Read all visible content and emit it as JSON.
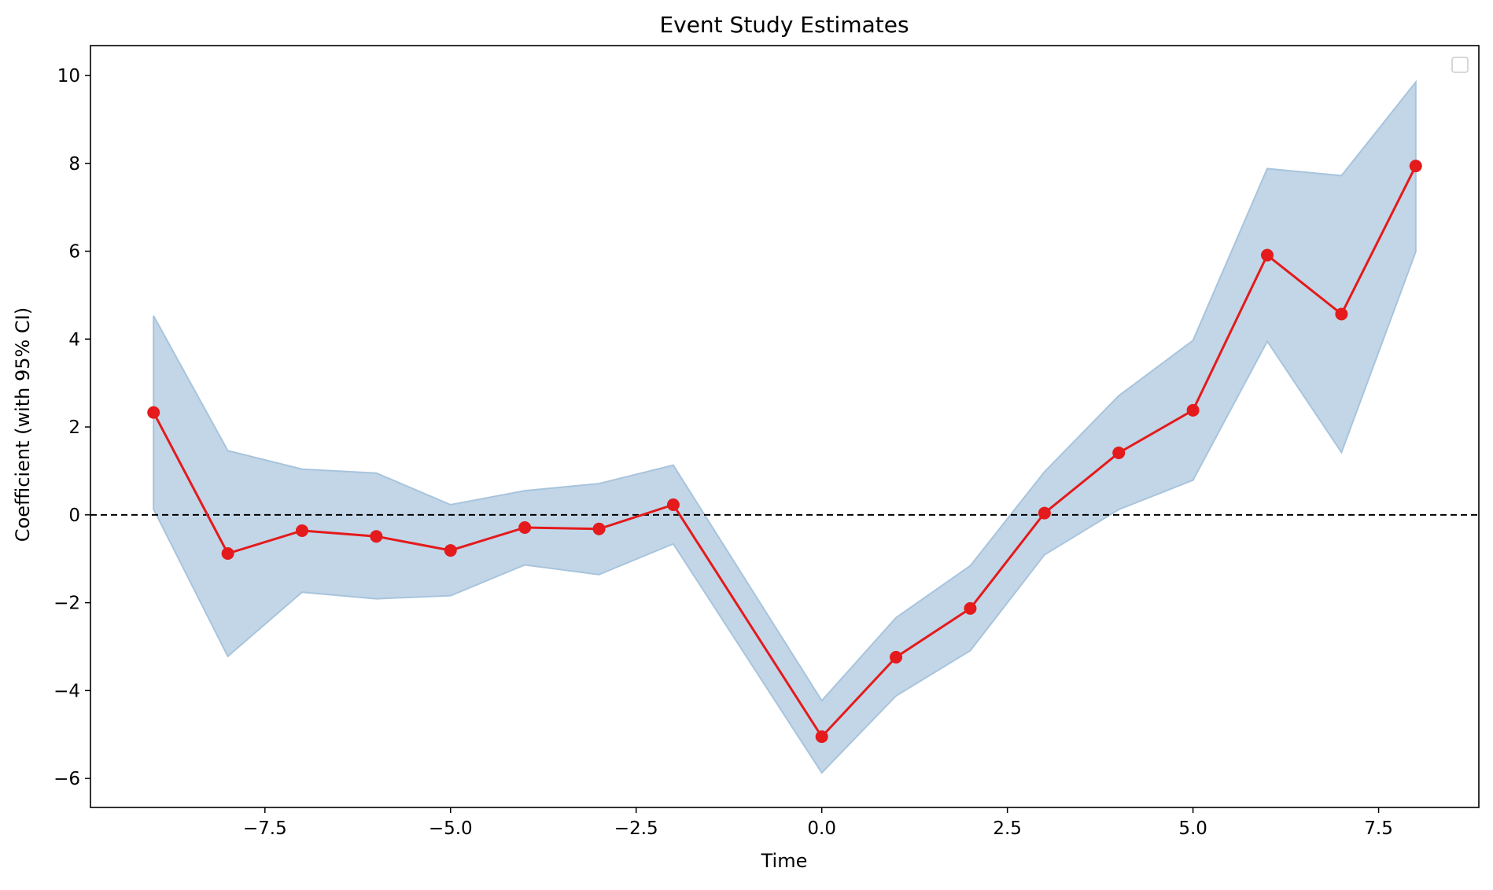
{
  "chart_data": {
    "type": "line",
    "title": "Event Study Estimates",
    "xlabel": "Time",
    "ylabel": "Coefficient (with 95% CI)",
    "xlim": [
      -9.85,
      8.85
    ],
    "ylim": [
      -6.66,
      10.68
    ],
    "x_ticks": [
      -7.5,
      -5.0,
      -2.5,
      0.0,
      2.5,
      5.0,
      7.5
    ],
    "x_tick_labels": [
      "−7.5",
      "−5.0",
      "−2.5",
      "0.0",
      "2.5",
      "5.0",
      "7.5"
    ],
    "y_ticks": [
      -6,
      -4,
      -2,
      0,
      2,
      4,
      6,
      8,
      10
    ],
    "y_tick_labels": [
      "−6",
      "−4",
      "−2",
      "0",
      "2",
      "4",
      "6",
      "8",
      "10"
    ],
    "grid": false,
    "legend": "upper right (empty)",
    "reference_line": {
      "y": 0,
      "style": "dashed",
      "color": "#000000"
    },
    "x": [
      -9,
      -8,
      -7,
      -6,
      -5,
      -4,
      -3,
      -2,
      0,
      1,
      2,
      3,
      4,
      5,
      6,
      7,
      8
    ],
    "series": [
      {
        "values": [
          2.33,
          -0.88,
          -0.36,
          -0.49,
          -0.81,
          -0.29,
          -0.32,
          0.23,
          -5.05,
          -3.24,
          -2.13,
          0.04,
          1.41,
          2.38,
          5.91,
          4.57,
          7.94
        ],
        "color": "#e41a1c",
        "marker": "circle"
      }
    ],
    "ci_lower": [
      0.13,
      -3.22,
      -1.76,
      -1.91,
      -1.84,
      -1.14,
      -1.36,
      -0.66,
      -5.87,
      -4.12,
      -3.09,
      -0.91,
      0.12,
      0.79,
      3.95,
      1.42,
      5.99
    ],
    "ci_upper": [
      4.53,
      1.46,
      1.04,
      0.95,
      0.23,
      0.55,
      0.71,
      1.13,
      -4.23,
      -2.34,
      -1.16,
      0.98,
      2.71,
      3.97,
      7.88,
      7.72,
      9.85
    ],
    "ci_color": "#a8c4dd"
  }
}
